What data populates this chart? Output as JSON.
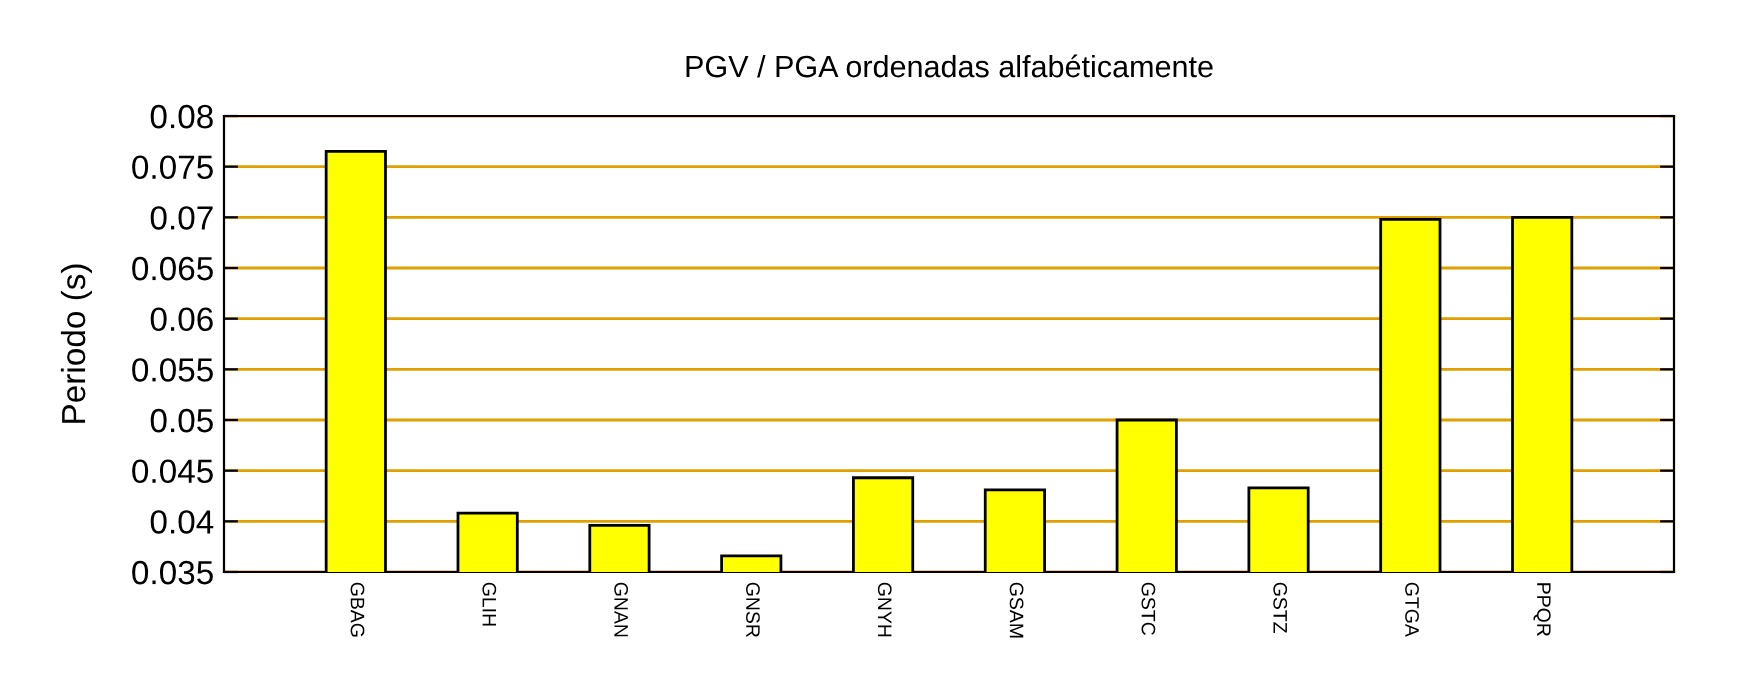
{
  "chart_data": {
    "type": "bar",
    "title": "PGV / PGA ordenadas alfabéticamente",
    "ylabel": "Periodo (s)",
    "categories": [
      "GBAG",
      "GLIH",
      "GNAN",
      "GNSR",
      "GNYH",
      "GSAM",
      "GSTC",
      "GSTZ",
      "GTGA",
      "PPQR"
    ],
    "values": [
      0.0765,
      0.0408,
      0.0396,
      0.0366,
      0.0443,
      0.0431,
      0.05,
      0.0433,
      0.0698,
      0.07
    ],
    "color": "#ffff00",
    "ylim": [
      0.035,
      0.08
    ],
    "yticks": [
      0.035,
      0.04,
      0.045,
      0.05,
      0.055,
      0.06,
      0.065,
      0.07,
      0.075,
      0.08
    ],
    "grid": "y",
    "legend": false
  }
}
